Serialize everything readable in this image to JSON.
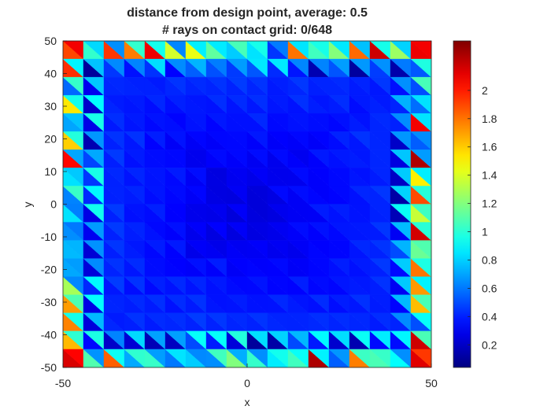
{
  "chart_data": {
    "type": "heatmap",
    "title_line1": "distance from design point, average: 0.5",
    "title_line2": "# rays on contact grid: 0/648",
    "xlabel": "x",
    "ylabel": "y",
    "xlim": [
      -50,
      50
    ],
    "ylim": [
      -50,
      50
    ],
    "xticks": [
      "-50",
      "0",
      "50"
    ],
    "yticks": [
      "50",
      "40",
      "30",
      "20",
      "10",
      "0",
      "-10",
      "-20",
      "-30",
      "-40",
      "-50"
    ],
    "colormap": "jet",
    "clim": [
      0.04,
      2.35
    ],
    "colorbar_ticks": [
      "2",
      "1.8",
      "1.6",
      "1.4",
      "1.2",
      "1",
      "0.8",
      "0.6",
      "0.4",
      "0.2"
    ],
    "grid": {
      "cells": 18,
      "triangles_per_cell": 2,
      "total_triangles": 648
    },
    "values_description_note": ""
  }
}
